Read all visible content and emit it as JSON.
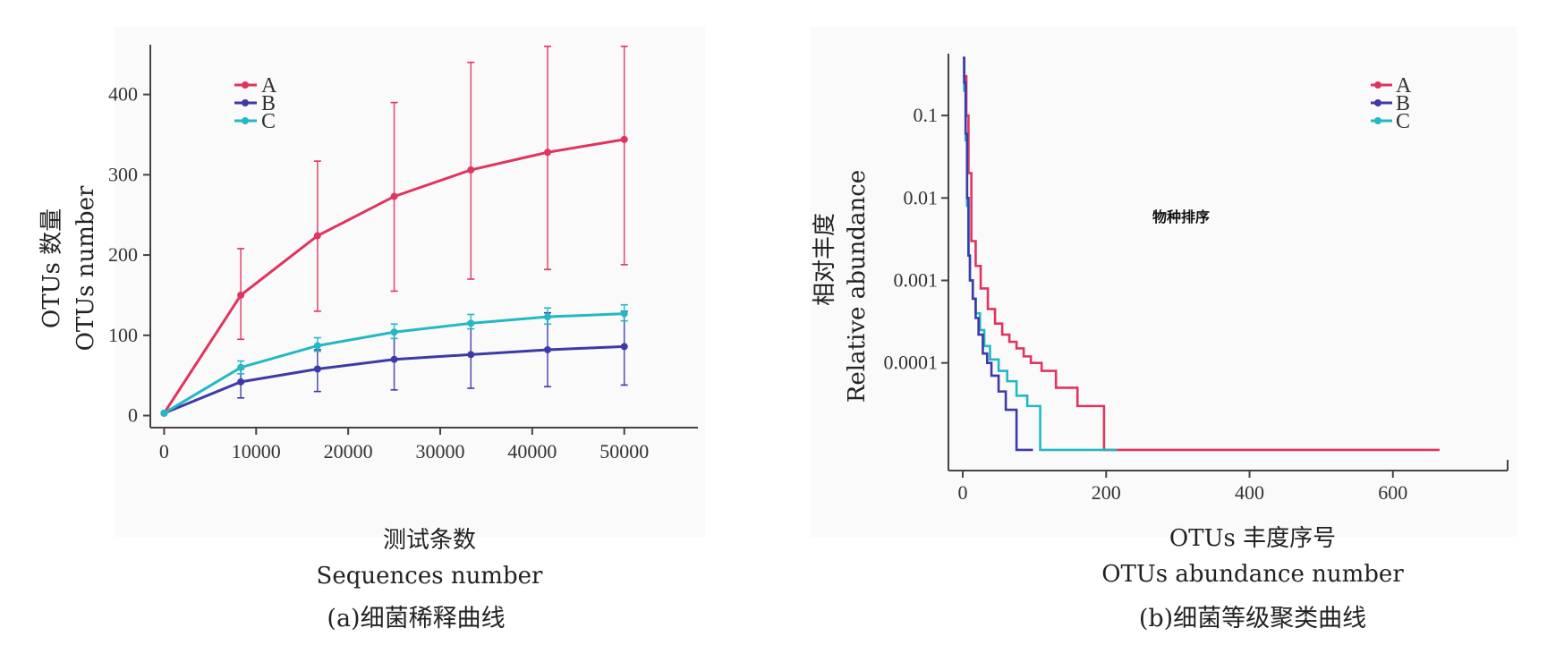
{
  "colors": {
    "A": "#e0345e",
    "B": "#3d3aa8",
    "C": "#22b8c4",
    "axis": "#444444",
    "panel": "#fafafa"
  },
  "chart_data": [
    {
      "type": "line",
      "caption": "(a)细菌稀释曲线",
      "xlabel_cn": "测试条数",
      "xlabel_en": "Sequences number",
      "ylabel_cn": "OTUs 数量",
      "ylabel_en": "OTUs number",
      "x": [
        0,
        8333,
        16667,
        25000,
        33333,
        41667,
        50000
      ],
      "xticks": [
        0,
        10000,
        20000,
        30000,
        40000,
        50000
      ],
      "yticks": [
        0,
        100,
        200,
        300,
        400
      ],
      "xlim": [
        -1500,
        58000
      ],
      "ylim": [
        -15,
        462
      ],
      "grid": false,
      "legend_position": "top-left",
      "series": [
        {
          "name": "A",
          "values": [
            3,
            150,
            224,
            273,
            306,
            328,
            344
          ],
          "err_low": [
            3,
            95,
            130,
            155,
            170,
            182,
            188
          ],
          "err_high": [
            3,
            208,
            317,
            390,
            440,
            460,
            460
          ]
        },
        {
          "name": "B",
          "values": [
            3,
            42,
            58,
            70,
            76,
            82,
            86
          ],
          "err_low": [
            3,
            22,
            30,
            32,
            34,
            36,
            38
          ],
          "err_high": [
            3,
            58,
            82,
            104,
            116,
            128,
            130
          ]
        },
        {
          "name": "C",
          "values": [
            3,
            60,
            87,
            104,
            115,
            123,
            127
          ],
          "err_low": [
            3,
            52,
            80,
            96,
            108,
            114,
            118
          ],
          "err_high": [
            3,
            68,
            97,
            114,
            126,
            134,
            138
          ]
        }
      ]
    },
    {
      "type": "line",
      "caption": "(b)细菌等级聚类曲线",
      "xlabel_cn": "OTUs 丰度序号",
      "xlabel_en": "OTUs abundance number",
      "ylabel_cn": "相对丰度",
      "ylabel_en": "Relative abundance",
      "y_scale": "log",
      "annotation": "物种排序",
      "xticks": [
        0,
        200,
        400,
        600
      ],
      "yticks": [
        0.1,
        0.01,
        0.001,
        0.0001
      ],
      "ytick_labels": [
        "0.1",
        "0.01",
        "0.001",
        "0.0001"
      ],
      "xlim": [
        -20,
        760
      ],
      "ylim": [
        4.95e-06,
        0.562
      ],
      "grid": false,
      "legend_position": "top-right",
      "series": [
        {
          "name": "A",
          "x": [
            0,
            2,
            5,
            8,
            12,
            18,
            25,
            35,
            45,
            55,
            65,
            75,
            85,
            95,
            110,
            130,
            160,
            195,
            197,
            220,
            400,
            665
          ],
          "values": [
            0.5,
            0.3,
            0.1,
            0.02,
            0.003,
            0.0015,
            0.0008,
            0.00045,
            0.0003,
            0.00022,
            0.00018,
            0.00015,
            0.00012,
            0.0001,
            8e-05,
            5e-05,
            3e-05,
            3e-05,
            8.8e-06,
            8.8e-06,
            8.8e-06,
            8.8e-06
          ]
        },
        {
          "name": "B",
          "x": [
            0,
            2,
            4,
            6,
            8,
            10,
            14,
            18,
            22,
            28,
            34,
            40,
            50,
            60,
            75,
            90,
            98
          ],
          "values": [
            0.5,
            0.25,
            0.06,
            0.01,
            0.002,
            0.001,
            0.0006,
            0.00035,
            0.00022,
            0.00013,
            0.0001,
            7e-05,
            4.5e-05,
            2.7e-05,
            8.8e-06,
            8.8e-06,
            8.8e-06
          ]
        },
        {
          "name": "C",
          "x": [
            0,
            2,
            4,
            6,
            8,
            10,
            14,
            18,
            24,
            30,
            38,
            50,
            62,
            75,
            90,
            105,
            108,
            150,
            215
          ],
          "values": [
            0.5,
            0.2,
            0.05,
            0.008,
            0.002,
            0.001,
            0.0006,
            0.0004,
            0.00025,
            0.00016,
            0.00011,
            8e-05,
            6e-05,
            4e-05,
            3e-05,
            3e-05,
            8.8e-06,
            8.8e-06,
            8.8e-06
          ]
        }
      ]
    }
  ]
}
